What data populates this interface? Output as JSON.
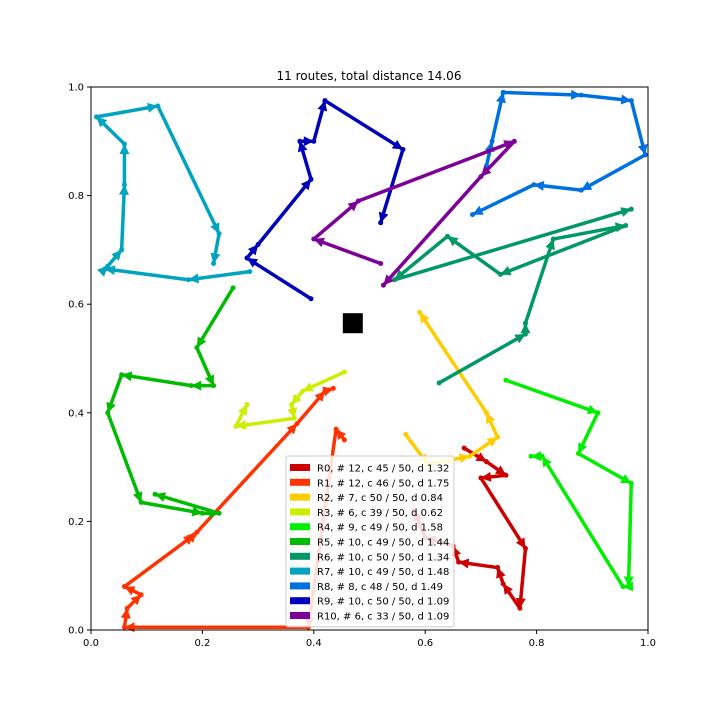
{
  "chart_data": {
    "type": "line",
    "title": "11 routes, total distance 14.06",
    "xlabel": "",
    "ylabel": "",
    "xlim": [
      0,
      1
    ],
    "ylim": [
      0,
      1
    ],
    "x_ticks": [
      "0.0",
      "0.2",
      "0.4",
      "0.6",
      "0.8",
      "1.0"
    ],
    "y_ticks": [
      "0.0",
      "0.2",
      "0.4",
      "0.6",
      "0.8",
      "1.0"
    ],
    "grid": false,
    "legend_position": "lower-center",
    "depot": {
      "x": 0.47,
      "y": 0.565,
      "color": "#000000"
    },
    "series": [
      {
        "name": "R0, # 12, c 45 / 50, d 1.32",
        "color": "#cc0000",
        "points": [
          [
            0.67,
            0.335
          ],
          [
            0.71,
            0.31
          ],
          [
            0.745,
            0.285
          ],
          [
            0.7,
            0.28
          ],
          [
            0.78,
            0.15
          ],
          [
            0.77,
            0.04
          ],
          [
            0.74,
            0.085
          ],
          [
            0.73,
            0.115
          ],
          [
            0.66,
            0.125
          ],
          [
            0.65,
            0.155
          ],
          [
            0.6,
            0.17
          ],
          [
            0.58,
            0.22
          ]
        ]
      },
      {
        "name": "R1, # 12, c 46 / 50, d 1.75",
        "color": "#ff3300",
        "points": [
          [
            0.455,
            0.35
          ],
          [
            0.44,
            0.37
          ],
          [
            0.39,
            0.005
          ],
          [
            0.06,
            0.005
          ],
          [
            0.065,
            0.04
          ],
          [
            0.09,
            0.065
          ],
          [
            0.06,
            0.08
          ],
          [
            0.185,
            0.175
          ],
          [
            0.19,
            0.18
          ],
          [
            0.37,
            0.38
          ],
          [
            0.42,
            0.44
          ],
          [
            0.435,
            0.445
          ]
        ]
      },
      {
        "name": "R2, # 7, c 50 / 50, d 0.84",
        "color": "#ffcc00",
        "points": [
          [
            0.565,
            0.36
          ],
          [
            0.605,
            0.305
          ],
          [
            0.68,
            0.32
          ],
          [
            0.73,
            0.355
          ],
          [
            0.71,
            0.4
          ],
          [
            0.59,
            0.585
          ]
        ]
      },
      {
        "name": "R3, # 6, c 39 / 50, d 0.62",
        "color": "#ccee00",
        "points": [
          [
            0.455,
            0.475
          ],
          [
            0.38,
            0.44
          ],
          [
            0.36,
            0.415
          ],
          [
            0.365,
            0.39
          ],
          [
            0.26,
            0.375
          ],
          [
            0.28,
            0.415
          ]
        ]
      },
      {
        "name": "R4, # 9, c 49 / 50, d 1.58",
        "color": "#00ee00",
        "points": [
          [
            0.745,
            0.46
          ],
          [
            0.91,
            0.4
          ],
          [
            0.875,
            0.325
          ],
          [
            0.97,
            0.27
          ],
          [
            0.965,
            0.08
          ],
          [
            0.955,
            0.08
          ],
          [
            0.81,
            0.32
          ],
          [
            0.79,
            0.32
          ]
        ]
      },
      {
        "name": "R5, # 10, c 49 / 50, d 1.44",
        "color": "#00bb00",
        "points": [
          [
            0.255,
            0.63
          ],
          [
            0.19,
            0.52
          ],
          [
            0.22,
            0.45
          ],
          [
            0.18,
            0.45
          ],
          [
            0.055,
            0.47
          ],
          [
            0.03,
            0.4
          ],
          [
            0.09,
            0.235
          ],
          [
            0.2,
            0.215
          ],
          [
            0.23,
            0.215
          ],
          [
            0.115,
            0.25
          ]
        ]
      },
      {
        "name": "R6, # 10, c 50 / 50, d 1.34",
        "color": "#009966",
        "points": [
          [
            0.625,
            0.455
          ],
          [
            0.78,
            0.545
          ],
          [
            0.78,
            0.565
          ],
          [
            0.83,
            0.72
          ],
          [
            0.96,
            0.745
          ],
          [
            0.735,
            0.655
          ],
          [
            0.64,
            0.725
          ],
          [
            0.545,
            0.645
          ],
          [
            0.97,
            0.775
          ]
        ]
      },
      {
        "name": "R7, # 10, c 49 / 50, d 1.48",
        "color": "#00a3c0",
        "points": [
          [
            0.285,
            0.66
          ],
          [
            0.175,
            0.645
          ],
          [
            0.025,
            0.665
          ],
          [
            0.03,
            0.67
          ],
          [
            0.055,
            0.7
          ],
          [
            0.06,
            0.82
          ],
          [
            0.06,
            0.895
          ],
          [
            0.01,
            0.945
          ],
          [
            0.12,
            0.965
          ],
          [
            0.23,
            0.73
          ],
          [
            0.22,
            0.675
          ]
        ]
      },
      {
        "name": "R8, # 8, c 48 / 50, d 1.49",
        "color": "#0070e0",
        "points": [
          [
            0.71,
            0.855
          ],
          [
            0.72,
            0.9
          ],
          [
            0.74,
            0.99
          ],
          [
            0.88,
            0.985
          ],
          [
            0.97,
            0.975
          ],
          [
            0.995,
            0.875
          ],
          [
            0.88,
            0.81
          ],
          [
            0.795,
            0.82
          ],
          [
            0.685,
            0.765
          ]
        ]
      },
      {
        "name": "R9, # 10, c 50 / 50, d 1.09",
        "color": "#0000bb",
        "points": [
          [
            0.395,
            0.61
          ],
          [
            0.28,
            0.685
          ],
          [
            0.3,
            0.71
          ],
          [
            0.395,
            0.83
          ],
          [
            0.375,
            0.9
          ],
          [
            0.4,
            0.9
          ],
          [
            0.42,
            0.975
          ],
          [
            0.56,
            0.885
          ],
          [
            0.52,
            0.75
          ]
        ]
      },
      {
        "name": "R10, # 6, c 33 / 50, d 1.09",
        "color": "#7d0099",
        "points": [
          [
            0.52,
            0.675
          ],
          [
            0.4,
            0.72
          ],
          [
            0.48,
            0.79
          ],
          [
            0.76,
            0.9
          ],
          [
            0.7,
            0.835
          ],
          [
            0.525,
            0.635
          ]
        ]
      }
    ]
  }
}
